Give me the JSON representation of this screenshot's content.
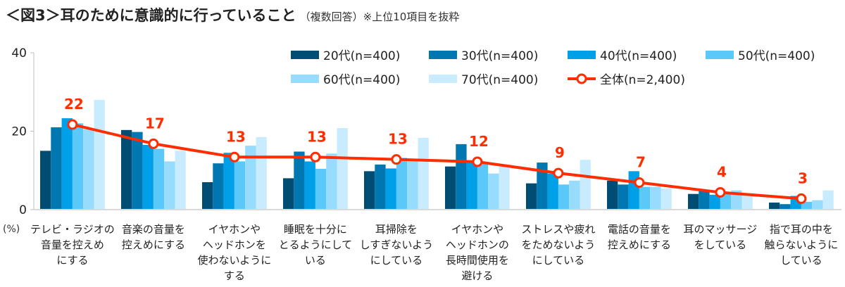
{
  "title": {
    "main": "＜図3＞耳のために意識的に行っていること",
    "sub": "（複数回答）※上位10項目を抜粋"
  },
  "chart_data": {
    "type": "bar",
    "title": "＜図3＞耳のために意識的に行っていること",
    "subtitle": "（複数回答）※上位10項目を抜粋",
    "ylabel": "(%)",
    "ylim": [
      0,
      40
    ],
    "yticks": [
      "0",
      "20",
      "40"
    ],
    "grid": false,
    "legend_position": "top-right",
    "categories": [
      [
        "テレビ・ラジオの",
        "音量を控えめ",
        "にする"
      ],
      [
        "音楽の音量を",
        "控えめにする"
      ],
      [
        "イヤホンや",
        "ヘッドホンを",
        "使わないように",
        "する"
      ],
      [
        "睡眠を十分に",
        "とるようにして",
        "いる"
      ],
      [
        "耳掃除を",
        "しすぎないよう",
        "にしている"
      ],
      [
        "イヤホンや",
        "ヘッドホンの",
        "長時間使用を",
        "避ける"
      ],
      [
        "ストレスや疲れ",
        "をためないよう",
        "にしている"
      ],
      [
        "電話の音量を",
        "控えめにする"
      ],
      [
        "耳のマッサージ",
        "をしている"
      ],
      [
        "指で耳の中を",
        "触らないように",
        "している"
      ]
    ],
    "series": [
      {
        "name": "20代(n=400)",
        "color": "#004d73",
        "values": [
          15.0,
          20.3,
          7.0,
          8.0,
          9.8,
          11.0,
          6.7,
          7.4,
          4.0,
          1.8
        ]
      },
      {
        "name": "30代(n=400)",
        "color": "#0077b0",
        "values": [
          21.0,
          19.8,
          11.8,
          14.8,
          11.5,
          16.7,
          12.0,
          6.4,
          4.8,
          1.4
        ]
      },
      {
        "name": "40代(n=400)",
        "color": "#00a0e9",
        "values": [
          23.3,
          16.5,
          14.5,
          12.3,
          10.5,
          12.2,
          9.2,
          9.8,
          3.8,
          3.5
        ]
      },
      {
        "name": "50代(n=400)",
        "color": "#5bc8fa",
        "values": [
          22.0,
          15.5,
          12.3,
          10.4,
          13.2,
          12.2,
          6.4,
          5.8,
          4.0,
          2.0
        ]
      },
      {
        "name": "60代(n=400)",
        "color": "#97dcfd",
        "values": [
          20.5,
          12.3,
          16.3,
          14.3,
          12.5,
          9.2,
          7.4,
          5.8,
          4.9,
          2.4
        ]
      },
      {
        "name": "70代(n=400)",
        "color": "#c8ecfd",
        "values": [
          28.0,
          15.0,
          18.5,
          20.8,
          18.3,
          11.0,
          12.7,
          5.4,
          4.2,
          4.9
        ]
      }
    ],
    "line_series": {
      "name": "全体(n=2,400)",
      "color": "#ff2d00",
      "values": [
        21.7,
        16.8,
        13.4,
        13.4,
        12.8,
        12.2,
        9.3,
        6.9,
        4.4,
        2.8
      ],
      "labels": [
        "22",
        "17",
        "13",
        "13",
        "13",
        "12",
        "9",
        "7",
        "4",
        "3"
      ]
    }
  }
}
